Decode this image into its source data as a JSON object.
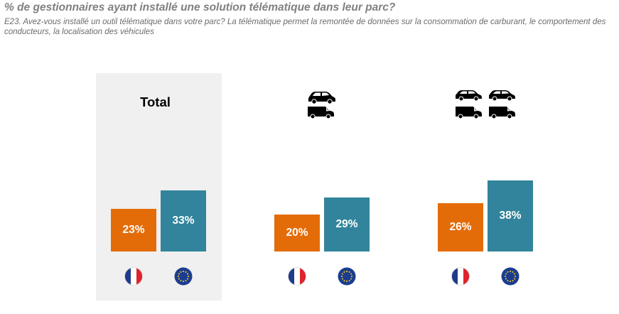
{
  "title": "% de gestionnaires ayant installé une solution télématique dans leur parc?",
  "subtitle": "E23. Avez-vous installé un outil télématique dans votre parc? La télématique permet la remontée de données sur la consommation de carburant, le comportement des conducteurs, la localisation des véhicules",
  "colors": {
    "france": "#e36c09",
    "europe": "#31849b",
    "total_bg": "#f0f0f0"
  },
  "chart_data": {
    "type": "bar",
    "title": "% de gestionnaires ayant installé une solution télématique dans leur parc?",
    "categories": [
      "Total",
      "cars-vans-icon-group-2",
      "cars-vans-icon-group-4"
    ],
    "category_labels": [
      "Total",
      "",
      ""
    ],
    "series": [
      {
        "name": "",
        "icon": "france-flag-icon",
        "color": "#e36c09",
        "values": [
          23,
          20,
          26
        ],
        "labels": [
          "23%",
          "20%",
          "26%"
        ]
      },
      {
        "name": "",
        "icon": "eu-flag-icon",
        "color": "#31849b",
        "values": [
          33,
          29,
          38
        ],
        "labels": [
          "33%",
          "29%",
          "38%"
        ]
      }
    ],
    "ylim": [
      0,
      40
    ],
    "grid": false,
    "legend": "none"
  }
}
